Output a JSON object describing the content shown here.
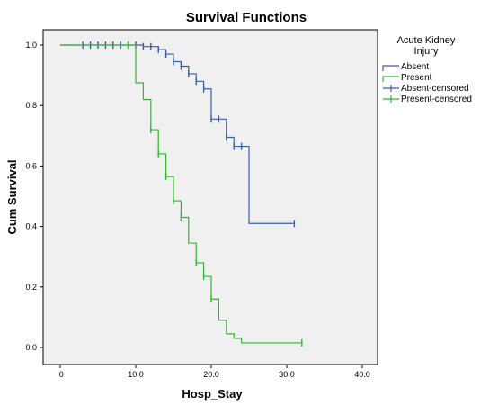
{
  "chart_data": {
    "type": "line",
    "subtype": "kaplan-meier-step",
    "title": "Survival Functions",
    "xlabel": "Hosp_Stay",
    "ylabel": "Cum Survival",
    "xlim": [
      0,
      40
    ],
    "ylim": [
      0,
      1.05
    ],
    "x_ticks": [
      0,
      10,
      20,
      30,
      40
    ],
    "x_tick_labels": [
      ".0",
      "10.0",
      "20.0",
      "30.0",
      "40.0"
    ],
    "y_ticks": [
      0,
      0.2,
      0.4,
      0.6,
      0.8,
      1.0
    ],
    "y_tick_labels": [
      "0.0",
      "0.2",
      "0.4",
      "0.6",
      "0.8",
      "1.0"
    ],
    "grid": false,
    "legend": {
      "title_line1": "Acute Kidney",
      "title_line2": "Injury",
      "position": "right",
      "entries": [
        "Absent",
        "Present",
        "Absent-censored",
        "Present-censored"
      ]
    },
    "series": [
      {
        "name": "Absent",
        "color": "#3b5ea8",
        "steps": [
          [
            0,
            1.0
          ],
          [
            11,
            0.995
          ],
          [
            13,
            0.985
          ],
          [
            14,
            0.97
          ],
          [
            15,
            0.945
          ],
          [
            16,
            0.93
          ],
          [
            17,
            0.905
          ],
          [
            18,
            0.88
          ],
          [
            19,
            0.855
          ],
          [
            20,
            0.755
          ],
          [
            22,
            0.695
          ],
          [
            23,
            0.665
          ],
          [
            25,
            0.41
          ],
          [
            31,
            0.41
          ]
        ],
        "censored": [
          3,
          4,
          5,
          6,
          7,
          8,
          9,
          10,
          11,
          12,
          13,
          14,
          15,
          16,
          17,
          18,
          19,
          20,
          21,
          22,
          23,
          24,
          31
        ]
      },
      {
        "name": "Present",
        "color": "#34b534",
        "steps": [
          [
            0,
            1.0
          ],
          [
            10,
            0.875
          ],
          [
            11,
            0.82
          ],
          [
            12,
            0.72
          ],
          [
            13,
            0.64
          ],
          [
            14,
            0.565
          ],
          [
            15,
            0.485
          ],
          [
            16,
            0.43
          ],
          [
            17,
            0.345
          ],
          [
            18,
            0.28
          ],
          [
            19,
            0.235
          ],
          [
            20,
            0.16
          ],
          [
            21,
            0.09
          ],
          [
            22,
            0.045
          ],
          [
            23,
            0.03
          ],
          [
            24,
            0.015
          ],
          [
            32,
            0.015
          ]
        ],
        "censored": [
          9,
          12,
          13,
          14,
          15,
          16,
          18,
          19,
          20,
          32
        ]
      }
    ]
  }
}
